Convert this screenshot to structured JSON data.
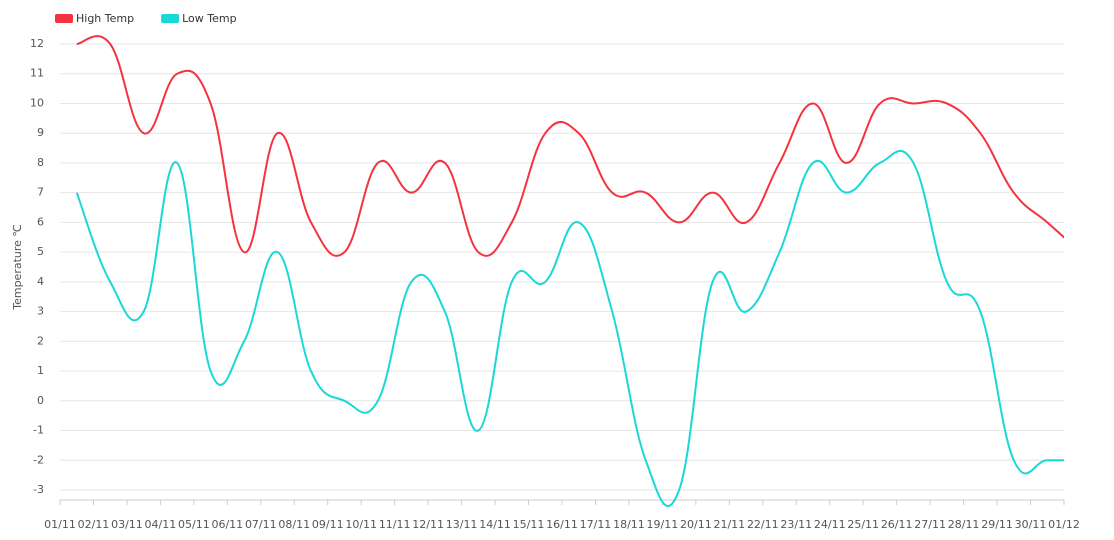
{
  "chart_data": {
    "type": "line",
    "y_label": "Temperature ℃",
    "categories": [
      "01/11",
      "02/11",
      "03/11",
      "04/11",
      "05/11",
      "06/11",
      "07/11",
      "08/11",
      "09/11",
      "10/11",
      "11/11",
      "12/11",
      "13/11",
      "14/11",
      "15/11",
      "16/11",
      "17/11",
      "18/11",
      "19/11",
      "20/11",
      "21/11",
      "22/11",
      "23/11",
      "24/11",
      "25/11",
      "26/11",
      "27/11",
      "28/11",
      "29/11",
      "30/11",
      "01/12"
    ],
    "series": [
      {
        "name": "High Temp",
        "color": "#f5333f",
        "values": [
          12,
          12,
          9,
          11,
          10,
          5,
          9,
          6,
          5,
          8,
          7,
          8,
          5,
          6,
          9,
          9,
          7,
          7,
          6,
          7,
          6,
          8,
          10,
          8,
          10,
          10,
          10,
          9,
          7,
          6,
          5
        ]
      },
      {
        "name": "Low Temp",
        "color": "#1ad8d8",
        "values": [
          7,
          4,
          3,
          8,
          1,
          2,
          5,
          1,
          0,
          0,
          4,
          3,
          -1,
          4,
          4,
          6,
          3,
          -2,
          -3,
          4,
          3,
          5,
          8,
          7,
          8,
          8,
          4,
          3,
          -2,
          -2,
          -2
        ]
      }
    ],
    "ylim": [
      -3,
      12
    ],
    "yticks": [
      -3,
      -2,
      -1,
      0,
      1,
      2,
      3,
      4,
      5,
      6,
      7,
      8,
      9,
      10,
      11,
      12
    ],
    "grid": true,
    "legend": "top-left"
  }
}
